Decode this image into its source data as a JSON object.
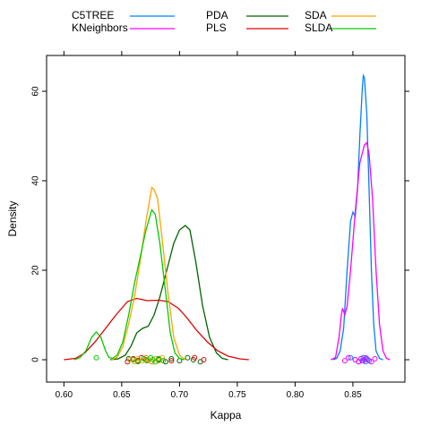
{
  "chart_data": {
    "type": "line",
    "subtype": "density",
    "title": "",
    "xlabel": "Kappa",
    "ylabel": "Density",
    "xlim": [
      0.585,
      0.895
    ],
    "ylim": [
      -5,
      68
    ],
    "grid": false,
    "legend": {
      "placement": "top",
      "columns": 3,
      "entries": [
        "C5TREE",
        "KNeighbors",
        "PDA",
        "PLS",
        "SDA",
        "SLDA"
      ]
    },
    "x_ticks": [
      {
        "value": 0.6,
        "label": "0.60"
      },
      {
        "value": 0.65,
        "label": "0.65"
      },
      {
        "value": 0.7,
        "label": "0.70"
      },
      {
        "value": 0.75,
        "label": "0.75"
      },
      {
        "value": 0.8,
        "label": "0.80"
      },
      {
        "value": 0.85,
        "label": "0.85"
      }
    ],
    "y_ticks": [
      {
        "value": 0,
        "label": "0"
      },
      {
        "value": 20,
        "label": "20"
      },
      {
        "value": 40,
        "label": "40"
      },
      {
        "value": 60,
        "label": "60"
      }
    ],
    "series": [
      {
        "name": "C5TREE",
        "color": "#0080ff",
        "points": [
          [
            0.833,
            0
          ],
          [
            0.836,
            0.3
          ],
          [
            0.839,
            2
          ],
          [
            0.842,
            7
          ],
          [
            0.845,
            20
          ],
          [
            0.848,
            31
          ],
          [
            0.85,
            33
          ],
          [
            0.852,
            32
          ],
          [
            0.854,
            38
          ],
          [
            0.856,
            50
          ],
          [
            0.858,
            60
          ],
          [
            0.859,
            63.5
          ],
          [
            0.86,
            63
          ],
          [
            0.862,
            55
          ],
          [
            0.864,
            38
          ],
          [
            0.866,
            20
          ],
          [
            0.868,
            8
          ],
          [
            0.87,
            2
          ],
          [
            0.873,
            0.3
          ],
          [
            0.876,
            0
          ]
        ],
        "rug": [
          0.848,
          0.852,
          0.855,
          0.857,
          0.858,
          0.859,
          0.86,
          0.861,
          0.862,
          0.864
        ]
      },
      {
        "name": "KNeighbors",
        "color": "#ff00ff",
        "points": [
          [
            0.831,
            0
          ],
          [
            0.835,
            0.5
          ],
          [
            0.838,
            5
          ],
          [
            0.84,
            10
          ],
          [
            0.841,
            11.5
          ],
          [
            0.843,
            10
          ],
          [
            0.845,
            12
          ],
          [
            0.848,
            20
          ],
          [
            0.852,
            33
          ],
          [
            0.856,
            44
          ],
          [
            0.86,
            48
          ],
          [
            0.862,
            48.5
          ],
          [
            0.864,
            46
          ],
          [
            0.867,
            36
          ],
          [
            0.87,
            20
          ],
          [
            0.873,
            8
          ],
          [
            0.876,
            2
          ],
          [
            0.879,
            0.3
          ],
          [
            0.882,
            0
          ]
        ],
        "rug": [
          0.843,
          0.846,
          0.852,
          0.855,
          0.857,
          0.859,
          0.861,
          0.863,
          0.866,
          0.869
        ]
      },
      {
        "name": "PDA",
        "color": "#006400",
        "points": [
          [
            0.64,
            0
          ],
          [
            0.647,
            0.2
          ],
          [
            0.653,
            1
          ],
          [
            0.658,
            3
          ],
          [
            0.663,
            6
          ],
          [
            0.668,
            7
          ],
          [
            0.673,
            7.5
          ],
          [
            0.678,
            10
          ],
          [
            0.683,
            14
          ],
          [
            0.689,
            20
          ],
          [
            0.695,
            26
          ],
          [
            0.7,
            29
          ],
          [
            0.705,
            30
          ],
          [
            0.709,
            29
          ],
          [
            0.714,
            22
          ],
          [
            0.72,
            12
          ],
          [
            0.726,
            5
          ],
          [
            0.732,
            1.5
          ],
          [
            0.737,
            0.3
          ],
          [
            0.742,
            0
          ]
        ],
        "rug": [
          0.656,
          0.664,
          0.671,
          0.682,
          0.688,
          0.693,
          0.7,
          0.707,
          0.712,
          0.718
        ]
      },
      {
        "name": "PLS",
        "color": "#e00000",
        "points": [
          [
            0.6,
            0
          ],
          [
            0.61,
            0.3
          ],
          [
            0.618,
            1.5
          ],
          [
            0.627,
            4
          ],
          [
            0.636,
            7
          ],
          [
            0.645,
            10
          ],
          [
            0.655,
            13
          ],
          [
            0.663,
            13.7
          ],
          [
            0.672,
            13.2
          ],
          [
            0.682,
            13.3
          ],
          [
            0.69,
            13
          ],
          [
            0.699,
            11.5
          ],
          [
            0.706,
            9.5
          ],
          [
            0.715,
            6.5
          ],
          [
            0.724,
            4
          ],
          [
            0.733,
            2
          ],
          [
            0.742,
            0.8
          ],
          [
            0.752,
            0.2
          ],
          [
            0.76,
            0
          ]
        ],
        "rug": [
          0.655,
          0.66,
          0.664,
          0.667,
          0.671,
          0.676,
          0.682,
          0.693,
          0.713,
          0.721
        ]
      },
      {
        "name": "SDA",
        "color": "#ffa500",
        "points": [
          [
            0.641,
            0
          ],
          [
            0.646,
            0.5
          ],
          [
            0.651,
            3
          ],
          [
            0.656,
            8
          ],
          [
            0.661,
            14
          ],
          [
            0.666,
            22
          ],
          [
            0.671,
            31
          ],
          [
            0.676,
            38.5
          ],
          [
            0.678,
            38
          ],
          [
            0.681,
            36
          ],
          [
            0.685,
            27
          ],
          [
            0.69,
            15
          ],
          [
            0.695,
            5
          ],
          [
            0.7,
            1
          ],
          [
            0.705,
            0
          ]
        ],
        "rug": [
          0.657,
          0.661,
          0.664,
          0.668,
          0.671,
          0.673,
          0.676,
          0.679,
          0.682,
          0.685
        ]
      },
      {
        "name": "SLDA",
        "color": "#00cc00",
        "points": [
          [
            0.609,
            0
          ],
          [
            0.614,
            0.5
          ],
          [
            0.619,
            2
          ],
          [
            0.624,
            5
          ],
          [
            0.628,
            6.2
          ],
          [
            0.632,
            5
          ],
          [
            0.636,
            2
          ],
          [
            0.639,
            0.5
          ],
          [
            0.642,
            0.3
          ],
          [
            0.646,
            1
          ],
          [
            0.651,
            4
          ],
          [
            0.656,
            10
          ],
          [
            0.661,
            17
          ],
          [
            0.666,
            23
          ],
          [
            0.671,
            29
          ],
          [
            0.676,
            33.5
          ],
          [
            0.679,
            32.5
          ],
          [
            0.683,
            26
          ],
          [
            0.688,
            15
          ],
          [
            0.692,
            6
          ],
          [
            0.696,
            1.5
          ],
          [
            0.7,
            0.3
          ],
          [
            0.704,
            0
          ]
        ],
        "rug": [
          0.628,
          0.66,
          0.664,
          0.669,
          0.672,
          0.675,
          0.677,
          0.679,
          0.682,
          0.686
        ]
      }
    ]
  }
}
